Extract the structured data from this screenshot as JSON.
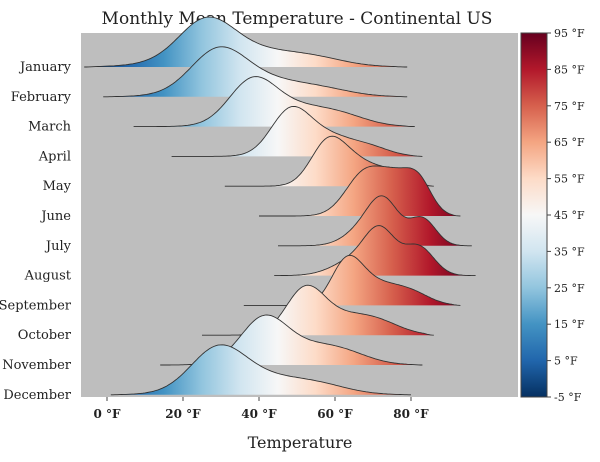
{
  "chart_data": {
    "type": "ridgeline",
    "title": "Monthly Mean Temperature - Continental US",
    "xlabel": "Temperature",
    "ylabel": "",
    "xlim": [
      -10,
      100
    ],
    "x_ticks": [
      {
        "value": 0,
        "label": "0 °F"
      },
      {
        "value": 20,
        "label": "20 °F"
      },
      {
        "value": 40,
        "label": "40 °F"
      },
      {
        "value": 60,
        "label": "60 °F"
      },
      {
        "value": 80,
        "label": "80 °F"
      }
    ],
    "grid": false,
    "background_color": "#bebebe",
    "colorbar": {
      "range": [
        -5,
        95
      ],
      "ticks": [
        {
          "value": 95,
          "label": "95 °F"
        },
        {
          "value": 85,
          "label": "85 °F"
        },
        {
          "value": 75,
          "label": "75 °F"
        },
        {
          "value": 65,
          "label": "65 °F"
        },
        {
          "value": 55,
          "label": "55 °F"
        },
        {
          "value": 45,
          "label": "45 °F"
        },
        {
          "value": 35,
          "label": "35 °F"
        },
        {
          "value": 25,
          "label": "25 °F"
        },
        {
          "value": 15,
          "label": "15 °F"
        },
        {
          "value": 5,
          "label": "5 °F"
        },
        {
          "value": -5,
          "label": "-5 °F"
        }
      ],
      "colors": [
        "#053061",
        "#2166ac",
        "#4393c3",
        "#92c5de",
        "#d1e5f0",
        "#f7f7f7",
        "#fddbc7",
        "#f4a582",
        "#d6604d",
        "#b2182b",
        "#67001f"
      ]
    },
    "series": [
      {
        "name": "January",
        "min": -6,
        "max": 79,
        "peaks": [
          [
            26,
            7,
            1.0
          ],
          [
            35,
            14,
            0.55
          ],
          [
            55,
            8,
            0.15
          ]
        ]
      },
      {
        "name": "February",
        "min": -1,
        "max": 79,
        "peaks": [
          [
            29,
            7,
            1.0
          ],
          [
            38,
            12,
            0.55
          ],
          [
            57,
            8,
            0.15
          ]
        ]
      },
      {
        "name": "March",
        "min": 7,
        "max": 81,
        "peaks": [
          [
            38,
            6,
            1.0
          ],
          [
            48,
            10,
            0.55
          ],
          [
            62,
            7,
            0.2
          ]
        ]
      },
      {
        "name": "April",
        "min": 17,
        "max": 83,
        "peaks": [
          [
            48,
            5,
            1.0
          ],
          [
            57,
            8,
            0.6
          ],
          [
            70,
            5,
            0.15
          ]
        ]
      },
      {
        "name": "May",
        "min": 31,
        "max": 86,
        "peaks": [
          [
            58,
            4.5,
            1.0
          ],
          [
            66,
            6,
            0.6
          ],
          [
            76,
            4,
            0.25
          ]
        ]
      },
      {
        "name": "June",
        "min": 40,
        "max": 93,
        "peaks": [
          [
            68,
            5,
            1.0
          ],
          [
            76,
            4,
            0.65
          ],
          [
            82,
            3.5,
            0.75
          ]
        ]
      },
      {
        "name": "July",
        "min": 45,
        "max": 96,
        "peaks": [
          [
            68,
            5,
            0.45
          ],
          [
            73,
            4,
            1.0
          ],
          [
            83,
            3.5,
            0.7
          ]
        ]
      },
      {
        "name": "August",
        "min": 44,
        "max": 97,
        "peaks": [
          [
            72,
            4,
            1.0
          ],
          [
            82,
            4,
            0.75
          ],
          [
            66,
            6,
            0.45
          ]
        ]
      },
      {
        "name": "September",
        "min": 36,
        "max": 93,
        "peaks": [
          [
            63,
            4,
            1.0
          ],
          [
            70,
            6,
            0.55
          ],
          [
            80,
            5,
            0.3
          ]
        ]
      },
      {
        "name": "October",
        "min": 25,
        "max": 86,
        "peaks": [
          [
            52,
            5,
            1.0
          ],
          [
            62,
            8,
            0.45
          ],
          [
            72,
            6,
            0.2
          ]
        ]
      },
      {
        "name": "November",
        "min": 14,
        "max": 83,
        "peaks": [
          [
            41,
            6,
            1.0
          ],
          [
            51,
            10,
            0.45
          ],
          [
            62,
            7,
            0.2
          ]
        ]
      },
      {
        "name": "December",
        "min": 1,
        "max": 80,
        "peaks": [
          [
            29,
            7,
            1.0
          ],
          [
            39,
            12,
            0.5
          ],
          [
            56,
            8,
            0.18
          ]
        ]
      }
    ]
  }
}
